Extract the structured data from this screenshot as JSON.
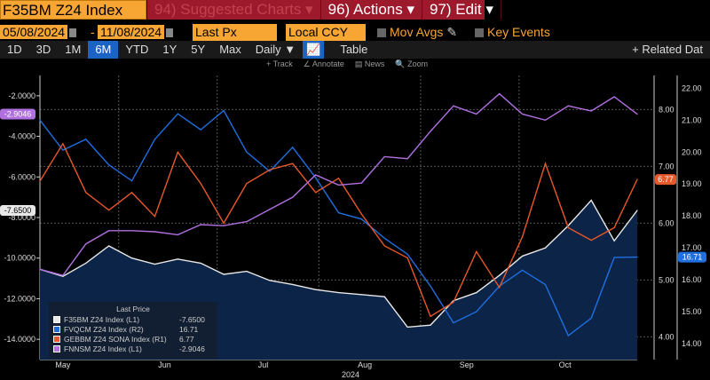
{
  "header": {
    "ticker": "F35BM Z24 Index",
    "menu": [
      {
        "label": "94) Suggested Charts ▾",
        "dim": true
      },
      {
        "label": "96) Actions ▾",
        "dim": false
      },
      {
        "label": "97) Edit ▾",
        "dim": false
      }
    ]
  },
  "controls": {
    "start_date": "05/08/2024",
    "date_sep": "-",
    "end_date": "11/08/2024",
    "field": "Last Px",
    "currency": "Local CCY",
    "mov_avgs": "Mov Avgs",
    "key_events": "Key Events"
  },
  "periods": [
    {
      "label": "1D"
    },
    {
      "label": "3D"
    },
    {
      "label": "1M"
    },
    {
      "label": "6M",
      "selected": true
    },
    {
      "label": "YTD"
    },
    {
      "label": "1Y"
    },
    {
      "label": "5Y"
    },
    {
      "label": "Max"
    },
    {
      "label": "Daily ▼"
    }
  ],
  "table_label": "Table",
  "related_label": "+ Related Dat",
  "tools": [
    "+ Track",
    "∠ Annotate",
    "▤ News",
    "🔍 Zoom"
  ],
  "chart_data": {
    "type": "line",
    "x": [
      "2024-05-08",
      "2024-05-15",
      "2024-05-22",
      "2024-05-29",
      "2024-06-05",
      "2024-06-12",
      "2024-06-19",
      "2024-06-26",
      "2024-07-03",
      "2024-07-10",
      "2024-07-17",
      "2024-07-24",
      "2024-07-31",
      "2024-08-07",
      "2024-08-14",
      "2024-08-21",
      "2024-08-28",
      "2024-09-04",
      "2024-09-11",
      "2024-09-18",
      "2024-09-25",
      "2024-10-02",
      "2024-10-09",
      "2024-10-16",
      "2024-10-23",
      "2024-10-30",
      "2024-11-06"
    ],
    "month_labels": [
      "May",
      "Jun",
      "Jul",
      "Aug",
      "Sep",
      "Oct"
    ],
    "year_label": "2024",
    "left_axis": {
      "ticks": [
        "-2.0000",
        "-4.0000",
        "-6.0000",
        "-8.0000",
        "-10.0000",
        "-12.0000",
        "-14.0000"
      ],
      "range": [
        -15,
        -1
      ]
    },
    "r1_axis": {
      "ticks": [
        "8.00",
        "7.00",
        "6.00",
        "5.00",
        "4.00"
      ],
      "range": [
        3.6,
        8.6
      ],
      "grid": true
    },
    "r2_axis": {
      "ticks": [
        "22.00",
        "21.00",
        "20.00",
        "19.00",
        "18.00",
        "17.00",
        "16.00",
        "15.00",
        "14.00"
      ],
      "range": [
        13.5,
        22.4
      ]
    },
    "legend": {
      "title": "Last Price",
      "placement": "bottom-left"
    },
    "series": [
      {
        "name": "F35BM Z24 Index",
        "axis": "L1",
        "axis_label": "(L1)",
        "last": "-7.6500",
        "color": "#e8e8e8",
        "fill": "#0b2447",
        "values": [
          -10.55,
          -10.9,
          -10.25,
          -9.4,
          -10.0,
          -10.3,
          -10.05,
          -10.25,
          -10.8,
          -10.65,
          -11.1,
          -11.3,
          -11.55,
          -11.7,
          -11.8,
          -11.9,
          -13.4,
          -13.3,
          -12.1,
          -11.7,
          -10.85,
          -9.9,
          -9.5,
          -8.4,
          -7.15,
          -9.15,
          -7.65
        ]
      },
      {
        "name": "FVQCM Z24 Index",
        "axis": "R2",
        "axis_label": "(R2)",
        "last": "16.71",
        "color": "#1f6fe0",
        "values": [
          21.0,
          20.06,
          20.4,
          19.6,
          19.1,
          20.4,
          21.2,
          20.7,
          21.3,
          20.0,
          19.4,
          20.15,
          19.2,
          18.1,
          17.9,
          17.3,
          16.8,
          15.8,
          14.65,
          15.0,
          15.8,
          16.3,
          15.85,
          14.25,
          14.8,
          16.7,
          16.71
        ]
      },
      {
        "name": "GEBBM Z24 SONA Index",
        "axis": "R1",
        "axis_label": "(R1)",
        "last": "6.77",
        "color": "#e8582a",
        "values": [
          6.74,
          7.4,
          6.54,
          6.23,
          6.54,
          6.12,
          7.25,
          6.7,
          6.0,
          6.7,
          6.94,
          7.05,
          6.54,
          6.79,
          6.16,
          5.6,
          5.39,
          4.36,
          4.61,
          5.5,
          4.87,
          5.76,
          7.05,
          5.92,
          5.7,
          5.92,
          6.77
        ]
      },
      {
        "name": "FNNSM Z24 Index",
        "axis": "L1",
        "axis_label": "(L1)",
        "last": "-2.9046",
        "color": "#b070e0",
        "values": [
          -10.55,
          -10.85,
          -9.3,
          -8.65,
          -8.65,
          -8.7,
          -8.85,
          -8.35,
          -8.4,
          -8.2,
          -7.6,
          -7.0,
          -5.9,
          -6.4,
          -6.3,
          -5.0,
          -5.1,
          -3.75,
          -2.5,
          -2.9,
          -1.9,
          -2.9,
          -3.2,
          -2.5,
          -2.75,
          -2.05,
          -2.9046
        ]
      }
    ]
  }
}
